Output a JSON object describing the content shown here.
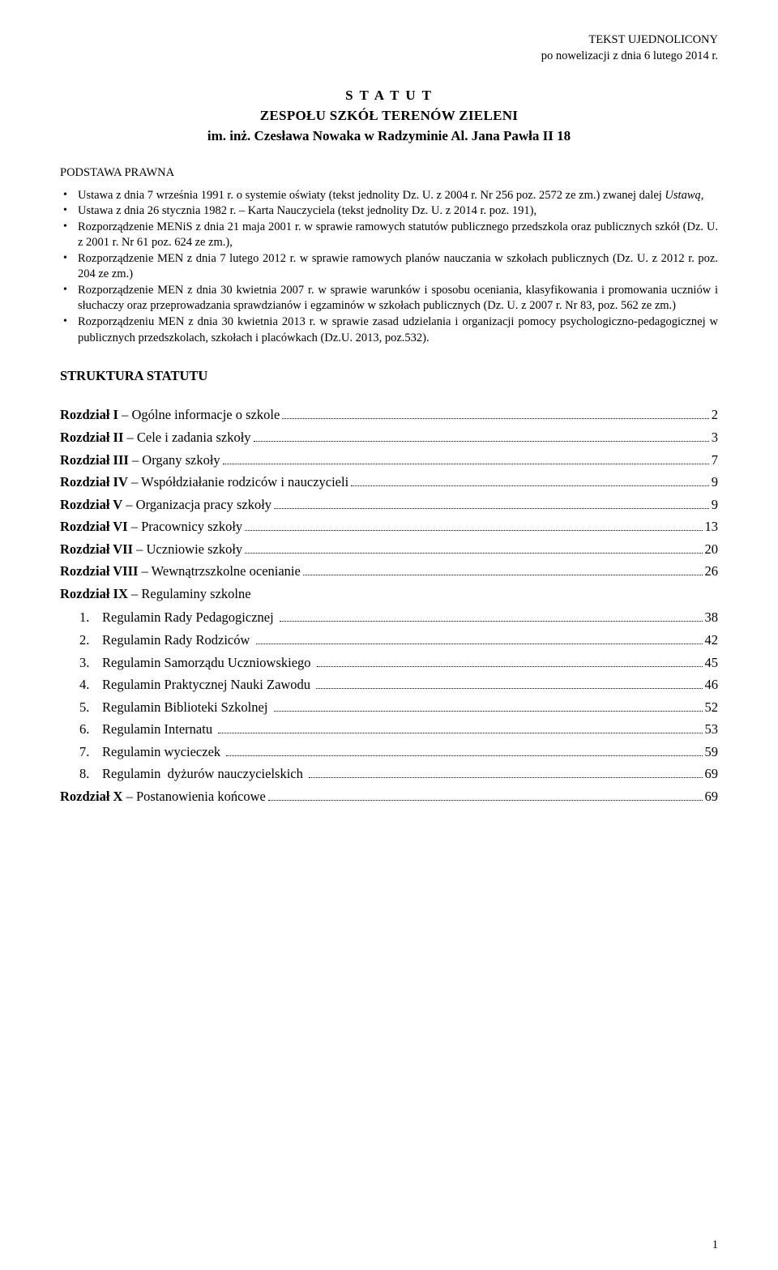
{
  "header": {
    "line1": "TEKST UJEDNOLICONY",
    "line2": "po nowelizacji z dnia 6 lutego 2014 r."
  },
  "title": {
    "line1": "S T A T U T",
    "line2": "ZESPOŁU  SZKÓŁ  TERENÓW  ZIELENI",
    "line3": "im. inż. Czesława Nowaka w Radzyminie Al. Jana Pawła II 18"
  },
  "legal_basis": {
    "heading": "PODSTAWA PRAWNA",
    "items": [
      "Ustawa z dnia 7 września 1991 r. o systemie oświaty (tekst jednolity Dz. U. z 2004 r. Nr 256 poz. 2572 ze zm.) zwanej dalej <span class=\"italic\">Ustawą,</span>",
      "Ustawa z dnia 26 stycznia 1982 r. – Karta Nauczyciela (tekst jednolity Dz. U. z 2014 r. poz. 191),",
      "Rozporządzenie MENiS z dnia  21 maja 2001 r. w sprawie ramowych statutów publicznego przedszkola oraz publicznych szkół (Dz. U. z 2001 r. Nr 61 poz. 624 ze zm.),",
      "Rozporządzenie MEN z dnia 7 lutego 2012 r. w sprawie ramowych planów nauczania w szkołach publicznych (Dz. U. z 2012 r. poz. 204 ze zm.)",
      "Rozporządzenie MEN z dnia 30 kwietnia 2007 r. w sprawie warunków i sposobu oceniania, klasyfikowania i promowania uczniów i słuchaczy oraz przeprowadzania sprawdzianów i egzaminów w szkołach publicznych (Dz. U. z 2007 r. Nr 83, poz. 562 ze zm.)",
      "Rozporządzeniu MEN z dnia 30 kwietnia 2013 r. w  sprawie zasad udzielania i organizacji pomocy psychologiczno-pedagogicznej w publicznych przedszkolach, szkołach i placówkach  (Dz.U. 2013, poz.532)."
    ]
  },
  "structure": {
    "heading": "STRUKTURA STATUTU",
    "chapters": [
      {
        "bold": "Rozdział I",
        "rest": " – Ogólne informacje o szkole",
        "page": "2"
      },
      {
        "bold": "Rozdział II",
        "rest": " – Cele i zadania szkoły",
        "page": "3"
      },
      {
        "bold": "Rozdział III",
        "rest": " – Organy szkoły",
        "page": "7"
      },
      {
        "bold": "Rozdział IV",
        "rest": " – Współdziałanie rodziców i nauczycieli",
        "page": "9"
      },
      {
        "bold": "Rozdział V",
        "rest": " – Organizacja pracy szkoły",
        "page": "9"
      },
      {
        "bold": "Rozdział VI",
        "rest": " – Pracownicy szkoły",
        "page": "13"
      },
      {
        "bold": "Rozdział VII",
        "rest": " – Uczniowie szkoły",
        "page": "20"
      },
      {
        "bold": "Rozdział VIII",
        "rest": " – Wewnątrzszkolne ocenianie",
        "page": "26"
      },
      {
        "bold": "Rozdział IX",
        "rest": " – Regulaminy szkolne",
        "page": ""
      }
    ],
    "sublist": [
      {
        "num": "1.",
        "label": "Regulamin Rady Pedagogicznej",
        "page": "38"
      },
      {
        "num": "2.",
        "label": "Regulamin Rady Rodziców",
        "page": "42"
      },
      {
        "num": "3.",
        "label": "Regulamin Samorządu Uczniowskiego",
        "page": "45"
      },
      {
        "num": "4.",
        "label": "Regulamin Praktycznej Nauki Zawodu",
        "page": "46"
      },
      {
        "num": "5.",
        "label": "Regulamin Biblioteki Szkolnej",
        "page": "52"
      },
      {
        "num": "6.",
        "label": "Regulamin Internatu",
        "page": "53"
      },
      {
        "num": "7.",
        "label": "Regulamin wycieczek",
        "page": "59"
      },
      {
        "num": "8.",
        "label": "Regulamin  dyżurów nauczycielskich",
        "page": "69"
      }
    ],
    "final": {
      "bold": "Rozdział X",
      "rest": " – Postanowienia końcowe",
      "page": "69"
    }
  },
  "page_number": "1",
  "colors": {
    "text": "#000000",
    "background": "#ffffff"
  }
}
